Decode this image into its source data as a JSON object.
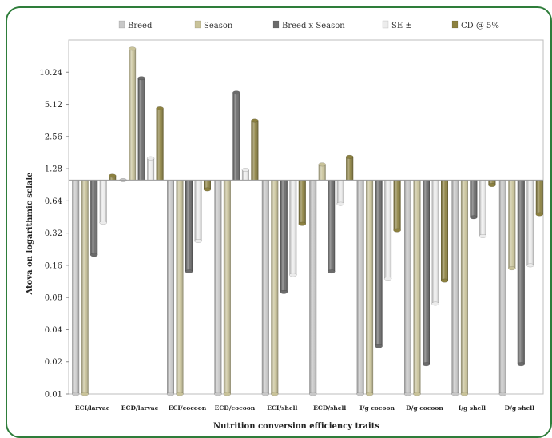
{
  "chart_data": {
    "type": "bar",
    "ylabel": "Atova on logarithmic sclale",
    "xlabel": "Nutrition conversion efficiency traits",
    "y_scale": "log2",
    "ylim": [
      0.01,
      20.48
    ],
    "baseline": 1.0,
    "y_ticks": [
      "0.01",
      "0.02",
      "0.04",
      "0.08",
      "0.16",
      "0.32",
      "0.64",
      "1.28",
      "2.56",
      "5.12",
      "10.24"
    ],
    "legend_position": "top",
    "categories": [
      "ECI/larvae",
      "ECD/larvae",
      "ECI/cocoon",
      "ECD/cocoon",
      "ECI/shell",
      "ECD/shell",
      "I/g cocoon",
      "D/g cocoon",
      "I/g shell",
      "D/g shell"
    ],
    "series": [
      {
        "name": "Breed",
        "color": "#c8c8c8",
        "values": [
          0.01,
          1.0,
          0.01,
          0.01,
          0.01,
          0.01,
          0.01,
          0.01,
          0.01,
          0.01
        ]
      },
      {
        "name": "Season",
        "color": "#c9c39a",
        "values": [
          0.01,
          17.0,
          0.01,
          0.01,
          0.01,
          1.4,
          0.01,
          0.01,
          0.01,
          0.15
        ]
      },
      {
        "name": "Breed x Season",
        "color": "#6b6b6b",
        "values": [
          0.2,
          9.0,
          0.14,
          6.6,
          0.09,
          0.14,
          0.028,
          0.019,
          0.45,
          0.019
        ]
      },
      {
        "name": "SE ±",
        "color": "#ececec",
        "values": [
          0.4,
          1.6,
          0.27,
          1.25,
          0.13,
          0.6,
          0.12,
          0.07,
          0.3,
          0.16
        ]
      },
      {
        "name": "CD @ 5%",
        "color": "#8c8140",
        "values": [
          1.1,
          4.7,
          0.82,
          3.6,
          0.39,
          1.65,
          0.34,
          0.115,
          0.9,
          0.48
        ]
      }
    ]
  }
}
